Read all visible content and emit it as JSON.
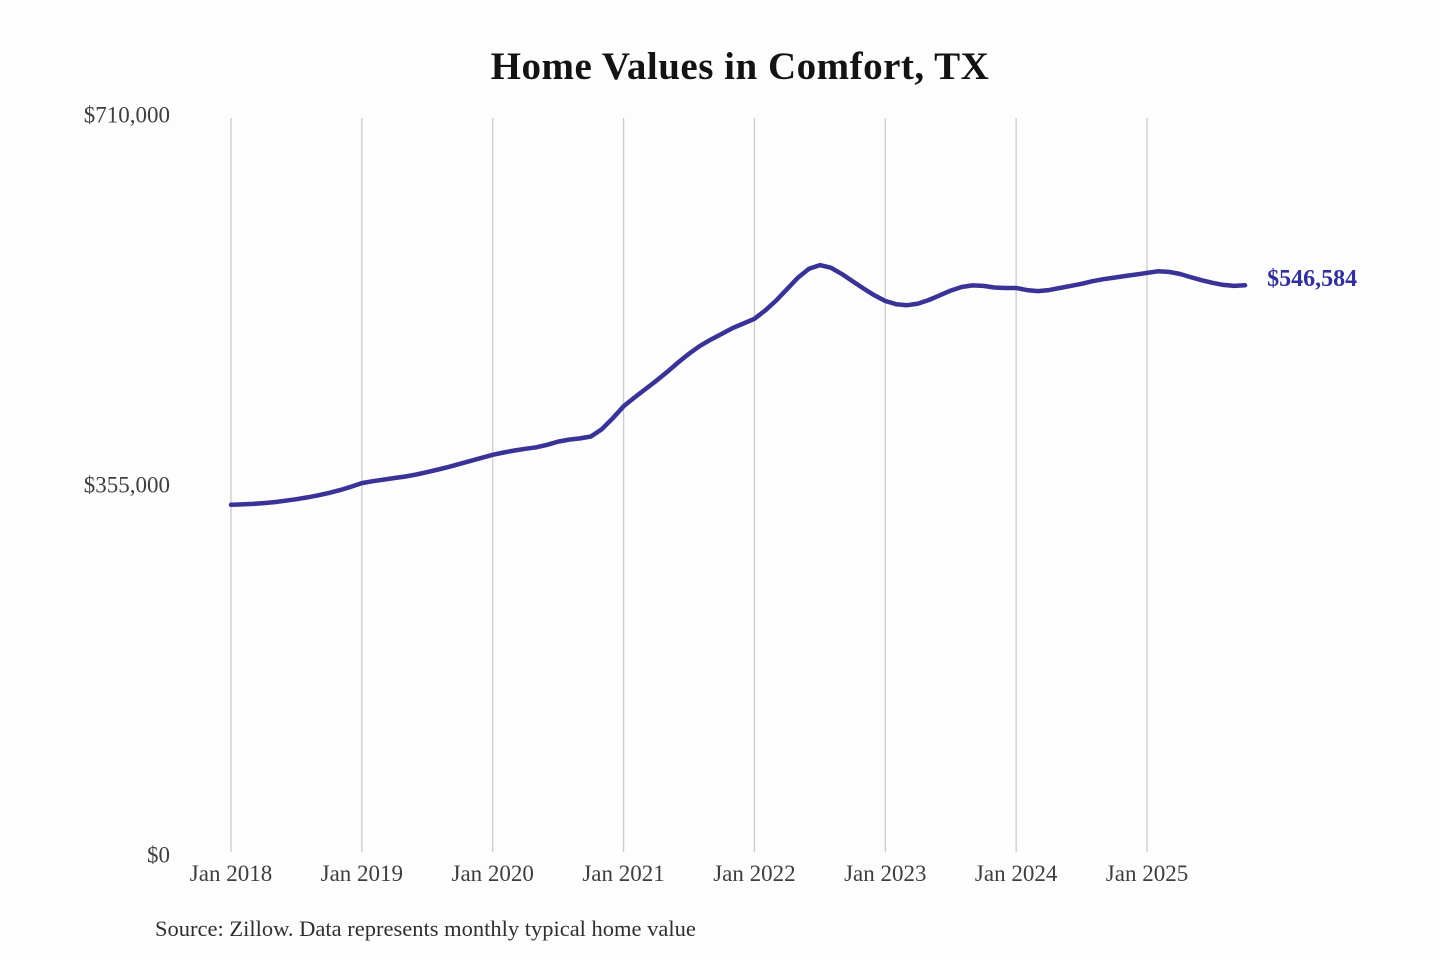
{
  "chart": {
    "title": "Home Values in Comfort, TX",
    "source_note": "Source: Zillow. Data represents monthly typical home value",
    "end_label": "$546,584",
    "line_color": "#3a3397",
    "end_label_color": "#322f99",
    "grid_color": "#cbcbcb",
    "axis_text_color": "#3e3e3e",
    "title_color": "#131313",
    "background_color": "#fdfdfd"
  },
  "chart_data": {
    "type": "line",
    "title": "Home Values in Comfort, TX",
    "xlabel": "",
    "ylabel": "",
    "x_start": "2018-01",
    "x_end": "2025-10",
    "frequency": "monthly",
    "ylim": [
      0,
      710000
    ],
    "y_tick_values": [
      0,
      355000,
      710000
    ],
    "y_tick_labels": [
      "$0",
      "$355,000",
      "$710,000"
    ],
    "x_tick_labels": [
      "Jan 2018",
      "Jan 2019",
      "Jan 2020",
      "Jan 2021",
      "Jan 2022",
      "Jan 2023",
      "Jan 2024",
      "Jan 2025"
    ],
    "x_tick_month_indices": [
      0,
      12,
      24,
      36,
      48,
      60,
      72,
      84
    ],
    "grid": "vertical-only",
    "legend": "none",
    "final_value": 546584,
    "final_value_label": "$546,584",
    "series": [
      {
        "name": "Monthly typical home value",
        "values": [
          336000,
          336400,
          336900,
          337600,
          338600,
          339900,
          341400,
          343100,
          345100,
          347400,
          350100,
          353300,
          356800,
          358600,
          360200,
          361700,
          363200,
          365100,
          367400,
          369900,
          372500,
          375300,
          378200,
          381100,
          384000,
          386200,
          388100,
          389700,
          391200,
          393600,
          396600,
          398600,
          399700,
          401500,
          408500,
          419000,
          430500,
          439000,
          447000,
          455000,
          463500,
          472500,
          481000,
          488500,
          494500,
          500000,
          505500,
          510000,
          514500,
          522500,
          532000,
          543000,
          554000,
          562500,
          566000,
          563500,
          557500,
          550500,
          543500,
          537000,
          531500,
          528500,
          527500,
          529000,
          532500,
          537000,
          541500,
          545000,
          546500,
          546000,
          544500,
          544000,
          544000,
          542000,
          541000,
          542000,
          544000,
          546000,
          548000,
          550500,
          552500,
          554000,
          555500,
          557000,
          558500,
          560000,
          559500,
          557500,
          554500,
          551500,
          549000,
          547000,
          546000,
          546584
        ]
      }
    ]
  }
}
